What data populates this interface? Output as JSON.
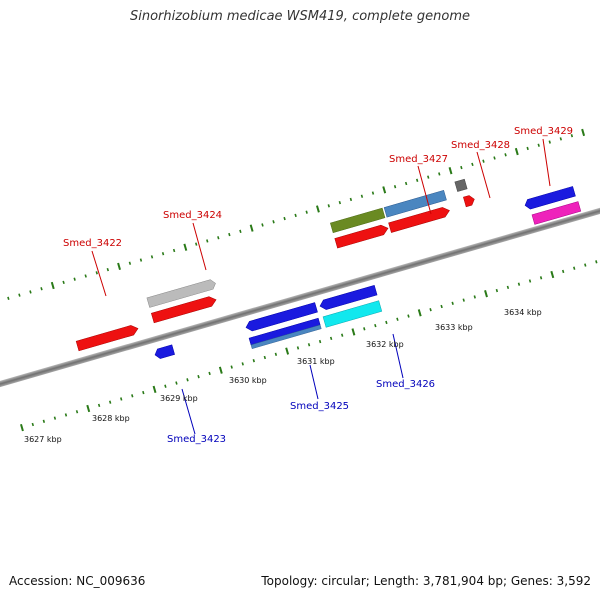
{
  "title": "Sinorhizobium medicae WSM419, complete genome",
  "footer": {
    "accession": "Accession: NC_009636",
    "stats": "Topology: circular; Length: 3,781,904 bp; Genes: 3,592"
  },
  "colors": {
    "backbone": "#888888",
    "tick": "#2a7a18",
    "forward_label": "#cc0000",
    "reverse_label": "#0000bb",
    "red": "#ee1111",
    "blue": "#1a1adf",
    "steel_blue": "#4a86c0",
    "grey": "#bbbbbb",
    "dark_grey": "#666666",
    "olive": "#6a8a22",
    "cyan": "#11e8ee",
    "magenta": "#ee22bb"
  },
  "kbp_labels": [
    "3627 kbp",
    "3628 kbp",
    "3629 kbp",
    "3630 kbp",
    "3631 kbp",
    "3632 kbp",
    "3633 kbp",
    "3634 kbp"
  ],
  "gene_labels": {
    "smed_3422": "Smed_3422",
    "smed_3423": "Smed_3423",
    "smed_3424": "Smed_3424",
    "smed_3425": "Smed_3425",
    "smed_3426": "Smed_3426",
    "smed_3427": "Smed_3427",
    "smed_3428": "Smed_3428",
    "smed_3429": "Smed_3429"
  }
}
